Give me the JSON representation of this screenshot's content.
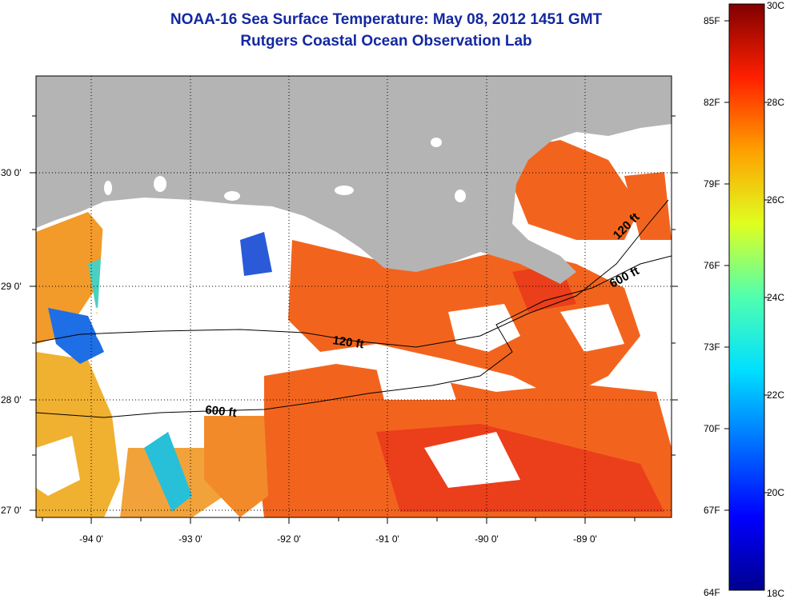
{
  "title": {
    "line1": "NOAA-16 Sea Surface Temperature:  May 08, 2012 1451 GMT",
    "line2": "Rutgers Coastal Ocean Observation Lab"
  },
  "map": {
    "x_ticks": [
      "-94 0'",
      "-93 0'",
      "-92 0'",
      "-91 0'",
      "-90 0'",
      "-89 0'"
    ],
    "y_ticks": [
      "30 0'",
      "29 0'",
      "28 0'",
      "27 0'"
    ],
    "contour_labels": [
      "120 ft",
      "600 ft",
      "120 ft",
      "600 ft"
    ],
    "colors": {
      "land": "#b4b4b4",
      "cloud_or_nodata": "#ffffff",
      "warm": "#f2641e",
      "coastal_cool": "#1e6ee6"
    }
  },
  "colorbar": {
    "fahrenheit_labels": [
      "85F",
      "82F",
      "79F",
      "76F",
      "73F",
      "70F",
      "67F",
      "64F"
    ],
    "celsius_labels": [
      "30C",
      "28C",
      "26C",
      "24C",
      "22C",
      "20C",
      "18C"
    ]
  }
}
